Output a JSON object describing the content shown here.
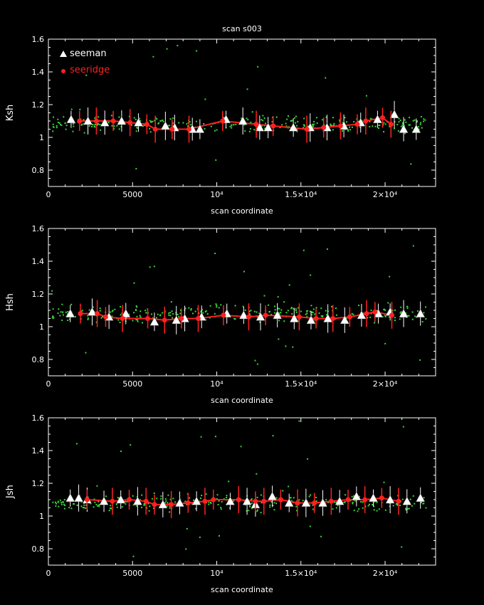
{
  "title": "scan s003",
  "colors": {
    "background": "#000000",
    "frame": "#ffffff",
    "noise": "#39d63a",
    "seeman": "#ffffff",
    "seeridge": "#ff2020"
  },
  "legend": {
    "placement": "top-left",
    "seeman": "seeman",
    "seeridge": "seeridge"
  },
  "chart_data": [
    {
      "type": "scatter",
      "ylabel": "Ksh",
      "xlabel": "scan coordinate",
      "xlim": [
        0,
        23000
      ],
      "ylim": [
        0.7,
        1.6
      ],
      "xticks": [
        "0",
        "5000",
        "10⁴",
        "1.5×10⁴",
        "2×10⁴"
      ],
      "yticks": [
        "0.8",
        "1",
        "1.2",
        "1.4",
        "1.6"
      ],
      "series": [
        {
          "name": "seeman",
          "x": [
            1350,
            2350,
            3350,
            4350,
            5350,
            6950,
            7500,
            8550,
            9000,
            10550,
            11550,
            12550,
            13050,
            14550,
            15550,
            16550,
            17550,
            18550,
            19550,
            20550,
            21100,
            21850
          ],
          "y": [
            1.11,
            1.1,
            1.09,
            1.1,
            1.09,
            1.07,
            1.06,
            1.05,
            1.05,
            1.11,
            1.1,
            1.06,
            1.06,
            1.06,
            1.06,
            1.06,
            1.07,
            1.09,
            1.11,
            1.14,
            1.05,
            1.05
          ]
        },
        {
          "name": "seeridge",
          "x": [
            1850,
            2850,
            3850,
            4850,
            5850,
            6350,
            7350,
            8350,
            10350,
            12350,
            13350,
            15350,
            16350,
            17350,
            18350,
            18850,
            19850,
            20350
          ],
          "y": [
            1.1,
            1.1,
            1.1,
            1.09,
            1.08,
            1.05,
            1.05,
            1.05,
            1.1,
            1.08,
            1.07,
            1.05,
            1.06,
            1.07,
            1.08,
            1.1,
            1.12,
            1.08
          ]
        }
      ]
    },
    {
      "type": "scatter",
      "ylabel": "Hsh",
      "xlabel": "scan coordinate",
      "xlim": [
        0,
        23000
      ],
      "ylim": [
        0.7,
        1.6
      ],
      "xticks": [
        "0",
        "5000",
        "10⁴",
        "1.5×10⁴",
        "2×10⁴"
      ],
      "yticks": [
        "0.8",
        "1",
        "1.2",
        "1.4",
        "1.6"
      ],
      "series": [
        {
          "name": "seeman",
          "x": [
            1300,
            2600,
            3600,
            4600,
            6300,
            7600,
            8100,
            9100,
            10600,
            11600,
            12600,
            13600,
            14600,
            15600,
            16600,
            17600,
            18600,
            19600,
            20300,
            21100,
            22100
          ],
          "y": [
            1.08,
            1.09,
            1.06,
            1.08,
            1.03,
            1.04,
            1.05,
            1.06,
            1.08,
            1.07,
            1.06,
            1.07,
            1.05,
            1.04,
            1.05,
            1.04,
            1.07,
            1.08,
            1.09,
            1.08,
            1.08
          ]
        },
        {
          "name": "seeridge",
          "x": [
            1900,
            2900,
            3400,
            4400,
            5900,
            6900,
            7900,
            8900,
            10400,
            11900,
            12900,
            14900,
            15900,
            16900,
            17900,
            18900,
            19400,
            20400
          ],
          "y": [
            1.08,
            1.08,
            1.06,
            1.05,
            1.05,
            1.04,
            1.05,
            1.05,
            1.07,
            1.06,
            1.07,
            1.06,
            1.05,
            1.05,
            1.06,
            1.08,
            1.09,
            1.07
          ]
        }
      ]
    },
    {
      "type": "scatter",
      "ylabel": "Jsh",
      "xlabel": "scan coordinate",
      "xlim": [
        0,
        23000
      ],
      "ylim": [
        0.7,
        1.6
      ],
      "xticks": [
        "0",
        "5000",
        "10⁴",
        "1.5×10⁴",
        "2×10⁴"
      ],
      "yticks": [
        "0.8",
        "1",
        "1.2",
        "1.4",
        "1.6"
      ],
      "series": [
        {
          "name": "seeman",
          "x": [
            1300,
            1800,
            2300,
            3300,
            4300,
            5300,
            6800,
            7800,
            8800,
            10800,
            11800,
            12300,
            13300,
            14300,
            15300,
            16300,
            17300,
            18300,
            19300,
            20300,
            21300,
            22100
          ],
          "y": [
            1.11,
            1.11,
            1.1,
            1.09,
            1.1,
            1.09,
            1.07,
            1.08,
            1.09,
            1.09,
            1.09,
            1.07,
            1.12,
            1.08,
            1.08,
            1.08,
            1.09,
            1.12,
            1.11,
            1.1,
            1.09,
            1.11
          ]
        },
        {
          "name": "seeridge",
          "x": [
            2300,
            3800,
            4800,
            5800,
            6300,
            7300,
            8300,
            9300,
            9800,
            11300,
            12300,
            12800,
            13800,
            14800,
            15800,
            16800,
            17800,
            18800,
            19800,
            20800
          ],
          "y": [
            1.1,
            1.09,
            1.1,
            1.09,
            1.07,
            1.07,
            1.08,
            1.09,
            1.1,
            1.1,
            1.09,
            1.09,
            1.1,
            1.08,
            1.08,
            1.09,
            1.1,
            1.1,
            1.11,
            1.09
          ]
        }
      ]
    }
  ]
}
